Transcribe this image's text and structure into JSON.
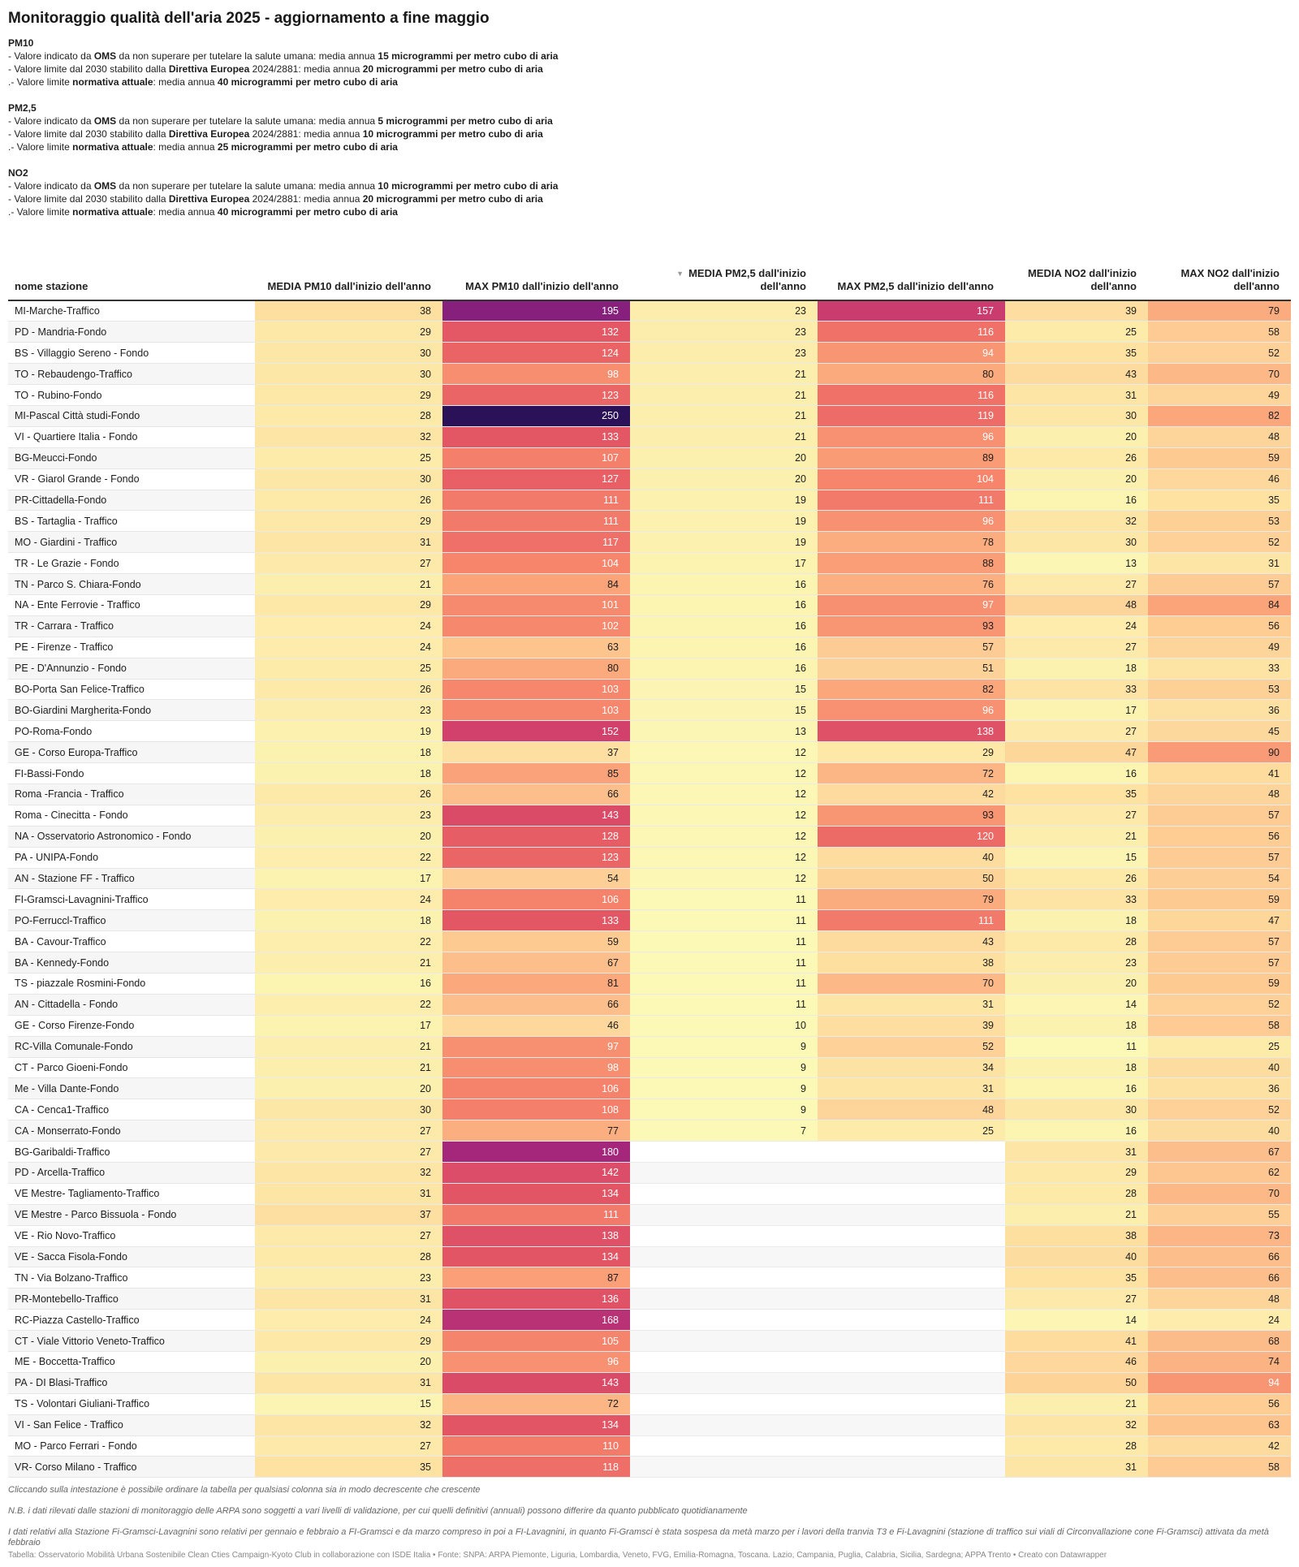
{
  "title": "Monitoraggio qualità dell'aria 2025 - aggiornamento a fine maggio",
  "intro": [
    {
      "heading": "PM10",
      "lines": [
        [
          {
            "t": "- Valore indicato da "
          },
          {
            "t": "OMS",
            "b": true
          },
          {
            "t": " da non superare per tutelare la salute umana: media annua "
          },
          {
            "t": "15 microgrammi per metro cubo di aria",
            "b": true
          }
        ],
        [
          {
            "t": "- Valore limite dal 2030 stabilito dalla "
          },
          {
            "t": "Direttiva Europea",
            "b": true
          },
          {
            "t": " 2024/2881: media annua "
          },
          {
            "t": "20 microgrammi per metro cubo di aria",
            "b": true
          }
        ],
        [
          {
            "t": ".- Valore limite "
          },
          {
            "t": "normativa attuale",
            "b": true
          },
          {
            "t": ": media annua "
          },
          {
            "t": "40 microgrammi per metro cubo di aria",
            "b": true
          }
        ]
      ]
    },
    {
      "heading": "PM2,5",
      "lines": [
        [
          {
            "t": "- Valore indicato da "
          },
          {
            "t": "OMS",
            "b": true
          },
          {
            "t": " da non superare per tutelare la salute umana: media annua "
          },
          {
            "t": "5 microgrammi per metro cubo di aria",
            "b": true
          }
        ],
        [
          {
            "t": "- Valore limite dal 2030 stabilito dalla "
          },
          {
            "t": "Direttiva Europea",
            "b": true
          },
          {
            "t": " 2024/2881: media annua "
          },
          {
            "t": "10 microgrammi per metro cubo di aria",
            "b": true
          }
        ],
        [
          {
            "t": ".- Valore limite "
          },
          {
            "t": "normativa attuale",
            "b": true
          },
          {
            "t": ": media annua "
          },
          {
            "t": "25 microgrammi per metro cubo di aria",
            "b": true
          }
        ]
      ]
    },
    {
      "heading": "NO2",
      "lines": [
        [
          {
            "t": "- Valore indicato da "
          },
          {
            "t": "OMS",
            "b": true
          },
          {
            "t": " da non superare per tutelare la salute umana: media annua "
          },
          {
            "t": "10 microgrammi per metro cubo di aria",
            "b": true
          }
        ],
        [
          {
            "t": "- Valore limite dal 2030 stabilito dalla "
          },
          {
            "t": "Direttiva Europea",
            "b": true
          },
          {
            "t": " 2024/2881: media annua "
          },
          {
            "t": "20 microgrammi per metro cubo di aria",
            "b": true
          }
        ],
        [
          {
            "t": ".- Valore limite "
          },
          {
            "t": "normativa attuale",
            "b": true
          },
          {
            "t": ": media annua "
          },
          {
            "t": "40 microgrammi per metro cubo di aria",
            "b": true
          }
        ]
      ]
    }
  ],
  "table": {
    "columns": [
      "nome stazione",
      "MEDIA PM10 dall'inizio dell'anno",
      "MAX PM10 dall'inizio dell'anno",
      "MEDIA PM2,5 dall'inizio dell'anno",
      "MAX PM2,5 dall'inizio dell'anno",
      "MEDIA NO2 dall'inizio dell'anno",
      "MAX NO2 dall'inizio dell'anno"
    ],
    "sorted_column": 3,
    "sort_icon": "sort-descending-icon",
    "rows": [
      [
        "MI-Marche-Traffico",
        38,
        195,
        23,
        157,
        39,
        79
      ],
      [
        "PD - Mandria-Fondo",
        29,
        132,
        23,
        116,
        25,
        58
      ],
      [
        "BS - Villaggio Sereno - Fondo",
        30,
        124,
        23,
        94,
        35,
        52
      ],
      [
        "TO - Rebaudengo-Traffico",
        30,
        98,
        21,
        80,
        43,
        70
      ],
      [
        "TO - Rubino-Fondo",
        29,
        123,
        21,
        116,
        31,
        49
      ],
      [
        "MI-Pascal Città studi-Fondo",
        28,
        250,
        21,
        119,
        30,
        82
      ],
      [
        "VI - Quartiere Italia - Fondo",
        32,
        133,
        21,
        96,
        20,
        48
      ],
      [
        "BG-Meucci-Fondo",
        25,
        107,
        20,
        89,
        26,
        59
      ],
      [
        "VR - Giarol Grande - Fondo",
        30,
        127,
        20,
        104,
        20,
        46
      ],
      [
        "PR-Cittadella-Fondo",
        26,
        111,
        19,
        111,
        16,
        35
      ],
      [
        "BS - Tartaglia - Traffico",
        29,
        111,
        19,
        96,
        32,
        53
      ],
      [
        "MO - Giardini - Traffico",
        31,
        117,
        19,
        78,
        30,
        52
      ],
      [
        "TR - Le Grazie - Fondo",
        27,
        104,
        17,
        88,
        13,
        31
      ],
      [
        "TN - Parco S. Chiara-Fondo",
        21,
        84,
        16,
        76,
        27,
        57
      ],
      [
        "NA - Ente Ferrovie - Traffico",
        29,
        101,
        16,
        97,
        48,
        84
      ],
      [
        "TR - Carrara - Traffico",
        24,
        102,
        16,
        93,
        24,
        56
      ],
      [
        "PE - Firenze - Traffico",
        24,
        63,
        16,
        57,
        27,
        49
      ],
      [
        "PE - D'Annunzio - Fondo",
        25,
        80,
        16,
        51,
        18,
        33
      ],
      [
        "BO-Porta San Felice-Traffico",
        26,
        103,
        15,
        82,
        33,
        53
      ],
      [
        "BO-Giardini Margherita-Fondo",
        23,
        103,
        15,
        96,
        17,
        36
      ],
      [
        "PO-Roma-Fondo",
        19,
        152,
        13,
        138,
        27,
        45
      ],
      [
        "GE - Corso Europa-Traffico",
        18,
        37,
        12,
        29,
        47,
        90
      ],
      [
        "FI-Bassi-Fondo",
        18,
        85,
        12,
        72,
        16,
        41
      ],
      [
        "Roma -Francia - Traffico",
        26,
        66,
        12,
        42,
        35,
        48
      ],
      [
        "Roma - Cinecitta - Fondo",
        23,
        143,
        12,
        93,
        27,
        57
      ],
      [
        "NA - Osservatorio Astronomico - Fondo",
        20,
        128,
        12,
        120,
        21,
        56
      ],
      [
        "PA - UNIPA-Fondo",
        22,
        123,
        12,
        40,
        15,
        57
      ],
      [
        "AN - Stazione FF - Traffico",
        17,
        54,
        12,
        50,
        26,
        54
      ],
      [
        "FI-Gramsci-Lavagnini-Traffico",
        24,
        106,
        11,
        79,
        33,
        59
      ],
      [
        "PO-Ferruccl-Traffico",
        18,
        133,
        11,
        111,
        18,
        47
      ],
      [
        "BA - Cavour-Traffico",
        22,
        59,
        11,
        43,
        28,
        57
      ],
      [
        "BA - Kennedy-Fondo",
        21,
        67,
        11,
        38,
        23,
        57
      ],
      [
        "TS - piazzale Rosmini-Fondo",
        16,
        81,
        11,
        70,
        20,
        59
      ],
      [
        "AN - Cittadella - Fondo",
        22,
        66,
        11,
        31,
        14,
        52
      ],
      [
        "GE - Corso Firenze-Fondo",
        17,
        46,
        10,
        39,
        18,
        58
      ],
      [
        "RC-Villa Comunale-Fondo",
        21,
        97,
        9,
        52,
        11,
        25
      ],
      [
        "CT - Parco Gioeni-Fondo",
        21,
        98,
        9,
        34,
        18,
        40
      ],
      [
        "Me - Villa Dante-Fondo",
        20,
        106,
        9,
        31,
        16,
        36
      ],
      [
        "CA - Cenca1-Traffico",
        30,
        108,
        9,
        48,
        30,
        52
      ],
      [
        "CA - Monserrato-Fondo",
        27,
        77,
        7,
        25,
        16,
        40
      ],
      [
        "BG-Garibaldi-Traffico",
        27,
        180,
        null,
        null,
        31,
        67
      ],
      [
        "PD - Arcella-Traffico",
        32,
        142,
        null,
        null,
        29,
        62
      ],
      [
        "VE Mestre- Tagliamento-Traffico",
        31,
        134,
        null,
        null,
        28,
        70
      ],
      [
        "VE Mestre - Parco Bissuola - Fondo",
        37,
        111,
        null,
        null,
        21,
        55
      ],
      [
        "VE - Rio Novo-Traffico",
        27,
        138,
        null,
        null,
        38,
        73
      ],
      [
        "VE - Sacca Fisola-Fondo",
        28,
        134,
        null,
        null,
        40,
        66
      ],
      [
        "TN - Via Bolzano-Traffico",
        23,
        87,
        null,
        null,
        35,
        66
      ],
      [
        "PR-Montebello-Traffico",
        31,
        136,
        null,
        null,
        27,
        48
      ],
      [
        "RC-Piazza Castello-Traffico",
        24,
        168,
        null,
        null,
        14,
        24
      ],
      [
        "CT - Viale Vittorio Veneto-Traffico",
        29,
        105,
        null,
        null,
        41,
        68
      ],
      [
        "ME - Boccetta-Traffico",
        20,
        96,
        null,
        null,
        46,
        74
      ],
      [
        "PA - DI Blasi-Traffico",
        31,
        143,
        null,
        null,
        50,
        94
      ],
      [
        "TS - Volontari Giuliani-Traffico",
        15,
        72,
        null,
        null,
        21,
        56
      ],
      [
        "VI - San Felice - Traffico",
        32,
        134,
        null,
        null,
        32,
        63
      ],
      [
        "MO - Parco Ferrari - Fondo",
        27,
        110,
        null,
        null,
        28,
        42
      ],
      [
        "VR- Corso Milano - Traffico",
        35,
        118,
        null,
        null,
        31,
        58
      ]
    ]
  },
  "notes": [
    "Cliccando sulla intestazione è possibile ordinare la tabella per qualsiasi colonna sia in modo decrescente che crescente",
    "N.B. i dati rilevati dalle stazioni di monitoraggio delle ARPA sono soggetti a vari livelli di validazione, per cui quelli definitivi (annuali) possono differire da quanto pubblicato quotidianamente",
    "I dati relativi alla Stazione Fi-Gramsci-Lavagnini sono relativi per gennaio e febbraio a FI-Gramsci e da marzo compreso in poi a FI-Lavagnini, in quanto Fi-Gramsci è stata sospesa da metà marzo per i lavori della tranvia T3 e Fi-Lavagnini (stazione di traffico sui viali di Circonvallazione cone Fi-Gramsci) attivata da metà febbraio"
  ],
  "footer": "Tabella: Osservatorio Mobilità Urbana Sostenibile Clean Cties Campaign-Kyoto Club in collaborazione con ISDE Italia • Fonte: SNPA: ARPA Piemonte, Liguria, Lombardia, Veneto, FVG, Emilia-Romagna, Toscana. Lazio, Campania, Puglia, Calabria, Sicilia, Sardegna; APPA Trento • Creato con Datawrapper",
  "colors": {
    "scale": [
      "#fcf9b6",
      "#fde3a3",
      "#fdcb93",
      "#fba77b",
      "#f5826b",
      "#e65a64",
      "#cf3f6c",
      "#a8287c",
      "#7a1d7e",
      "#3e1863",
      "#2a1158"
    ],
    "text_dark": "#1d1d1d",
    "text_light": "#ffffff"
  }
}
